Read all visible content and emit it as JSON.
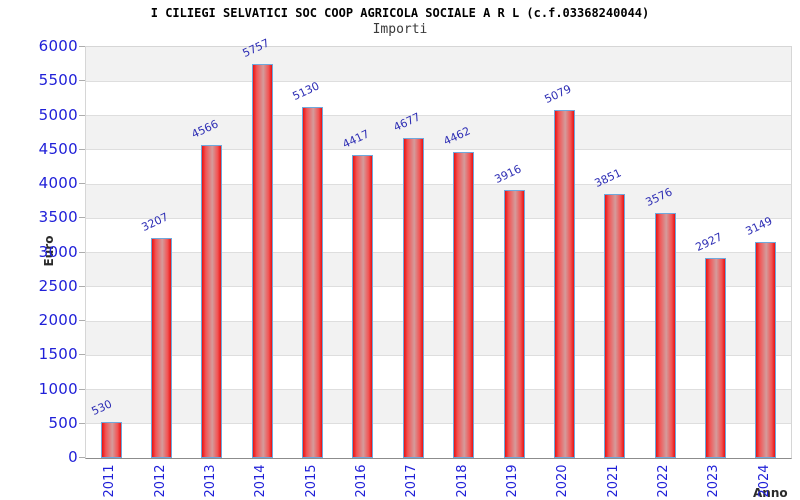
{
  "chart_data": {
    "type": "bar",
    "title": "I CILIEGI SELVATICI SOC COOP AGRICOLA SOCIALE A R L (c.f.03368240044)",
    "subtitle": "Importi",
    "xlabel": "Anno",
    "ylabel": "Euro",
    "categories": [
      "2011",
      "2012",
      "2013",
      "2014",
      "2015",
      "2016",
      "2017",
      "2018",
      "2019",
      "2020",
      "2021",
      "2022",
      "2023",
      "2024"
    ],
    "values": [
      530,
      3207,
      4566,
      5757,
      5130,
      4417,
      4677,
      4462,
      3916,
      5079,
      3851,
      3576,
      2927,
      3149
    ],
    "ylim": [
      0,
      6000
    ],
    "ytick_step": 500,
    "yticks": [
      0,
      500,
      1000,
      1500,
      2000,
      2500,
      3000,
      3500,
      4000,
      4500,
      5000,
      5500,
      6000
    ],
    "grid": "horizontal-bands",
    "legend": "none",
    "colors": {
      "bar_fill": "#e81212",
      "bar_fill_light": "#f25555",
      "bar_highlight": "#d49b9b",
      "bar_border": "#6fa8dc",
      "tick_text": "#2020d8",
      "value_label_text": "#2d2db4",
      "band_shade": "#f2f2f2",
      "axis_name_text": "#2b2b2b"
    }
  }
}
